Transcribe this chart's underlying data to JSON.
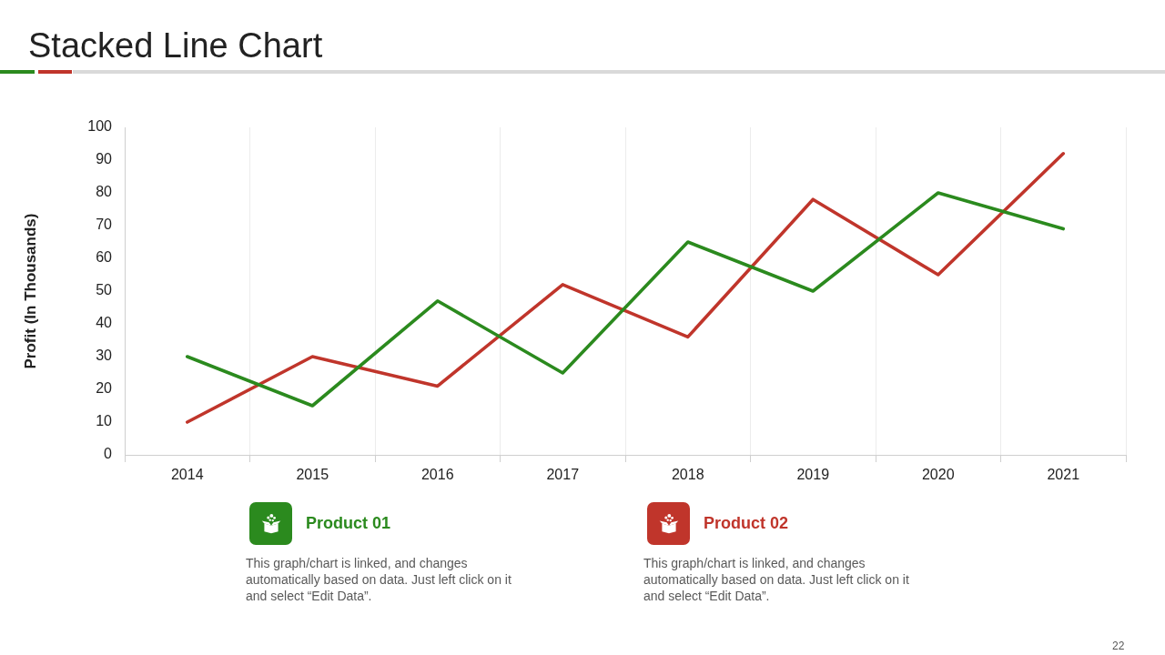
{
  "chart_data": {
    "type": "line",
    "title": "Stacked Line Chart",
    "ylabel": "Profit (In Thousands)",
    "categories": [
      "2014",
      "2015",
      "2016",
      "2017",
      "2018",
      "2019",
      "2020",
      "2021"
    ],
    "series": [
      {
        "name": "Product 01",
        "color": "#2b8a1e",
        "values": [
          30,
          15,
          47,
          25,
          65,
          50,
          80,
          69
        ]
      },
      {
        "name": "Product 02",
        "color": "#c0352b",
        "values": [
          10,
          30,
          21,
          52,
          36,
          78,
          55,
          92
        ]
      }
    ],
    "ylim": [
      0,
      100
    ],
    "yticks": [
      0,
      10,
      20,
      30,
      40,
      50,
      60,
      70,
      80,
      90,
      100
    ],
    "grid": "x",
    "legend": "bottom",
    "annotations": [
      "This graph/chart is linked, and changes automatically based on data. Just left click on it and select “Edit Data”.",
      "This graph/chart is linked, and changes automatically based on data. Just left click on it and select “Edit Data”.",
      "22"
    ]
  }
}
